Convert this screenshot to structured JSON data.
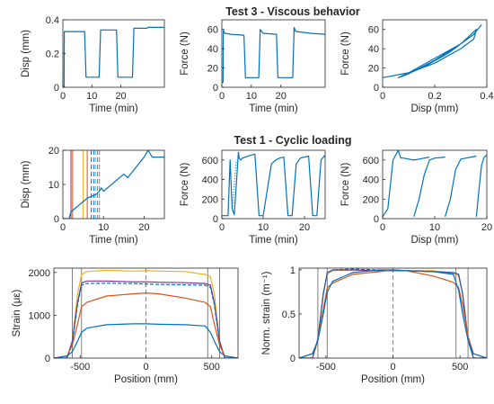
{
  "rows": [
    {
      "title": "Test 3 - Viscous behavior"
    },
    {
      "title": "Test 1 - Cyclic loading"
    }
  ],
  "colors": {
    "blue": "#0072BD",
    "red": "#D95319",
    "yellow": "#EDB120",
    "purple": "#7E2F8E",
    "green": "#77AC30",
    "cyan": "#4DBEEE",
    "axis": "#262626",
    "guide": "#808080"
  },
  "chart_data": [
    {
      "id": "t3_disp_time",
      "type": "line",
      "xlabel": "Time (min)",
      "ylabel": "Disp (mm)",
      "xlim": [
        0,
        35
      ],
      "ylim": [
        0,
        0.4
      ],
      "xticks": [
        0,
        10,
        20
      ],
      "yticks": [
        0,
        0.2,
        0.4
      ],
      "xticklabels": [
        "0",
        "10",
        "20"
      ],
      "yticklabels": [
        "0",
        "0.2",
        "0.4"
      ],
      "series": [
        {
          "color": "blue",
          "x": [
            0,
            0.4,
            0.5,
            7.5,
            8,
            12.5,
            13,
            18.5,
            19,
            24,
            24.5,
            29,
            29.5,
            35
          ],
          "y": [
            0,
            0,
            0.33,
            0.33,
            0.06,
            0.06,
            0.34,
            0.34,
            0.06,
            0.06,
            0.35,
            0.35,
            0.355,
            0.355
          ]
        }
      ]
    },
    {
      "id": "t3_force_time",
      "type": "line",
      "xlabel": "Time (min)",
      "ylabel": "Force (N)",
      "xlim": [
        0,
        35
      ],
      "ylim": [
        0,
        70
      ],
      "xticks": [
        0,
        10,
        20
      ],
      "yticks": [
        0,
        20,
        40,
        60
      ],
      "xticklabels": [
        "0",
        "10",
        "20"
      ],
      "yticklabels": [
        "0",
        "20",
        "40",
        "60"
      ],
      "series": [
        {
          "color": "blue",
          "x": [
            0,
            0.4,
            0.5,
            1,
            3,
            7.5,
            8,
            12.5,
            13,
            14,
            18.5,
            19,
            24,
            24.5,
            25,
            30,
            35
          ],
          "y": [
            5,
            5,
            59,
            56,
            55,
            54,
            10,
            10,
            60,
            56,
            55,
            10,
            10,
            62,
            58,
            56,
            55
          ]
        }
      ]
    },
    {
      "id": "t3_force_disp",
      "type": "line",
      "xlabel": "Disp (mm)",
      "ylabel": "Force (N)",
      "xlim": [
        0,
        0.4
      ],
      "ylim": [
        0,
        70
      ],
      "xticks": [
        0,
        0.2,
        0.4
      ],
      "yticks": [
        0,
        20,
        40,
        60
      ],
      "xticklabels": [
        "0",
        "0.2",
        "0.4"
      ],
      "yticklabels": [
        "0",
        "20",
        "40",
        "60"
      ],
      "series": [
        {
          "color": "blue",
          "x": [
            0,
            0.1,
            0.2,
            0.3,
            0.35,
            0.36,
            0.3,
            0.2,
            0.1,
            0.06,
            0.1,
            0.2,
            0.3,
            0.34,
            0.3,
            0.2,
            0.1,
            0.06,
            0.15,
            0.25,
            0.35,
            0.38
          ],
          "y": [
            10,
            15,
            25,
            40,
            50,
            60,
            45,
            28,
            14,
            10,
            15,
            30,
            45,
            55,
            45,
            30,
            15,
            10,
            20,
            35,
            55,
            65
          ]
        }
      ]
    },
    {
      "id": "t1_disp_time",
      "type": "line",
      "xlabel": "Time (min)",
      "ylabel": "Disp (mm)",
      "xlim": [
        0,
        25
      ],
      "ylim": [
        0,
        20
      ],
      "xticks": [
        0,
        10,
        20
      ],
      "yticks": [
        0,
        10,
        20
      ],
      "xticklabels": [
        "0",
        "10",
        "20"
      ],
      "yticklabels": [
        "0",
        "10",
        "20"
      ],
      "series": [
        {
          "color": "blue",
          "x": [
            0,
            1.5,
            2,
            3,
            4,
            5,
            6,
            7,
            8,
            9,
            9.5,
            10,
            15,
            16,
            20,
            21,
            22,
            24,
            25
          ],
          "y": [
            0,
            0,
            2,
            3,
            4,
            5,
            6,
            6.5,
            7,
            8,
            9,
            8,
            13,
            12,
            18,
            20,
            18,
            18,
            18
          ]
        }
      ],
      "vlines": [
        {
          "x": 2,
          "color": "purple",
          "dash": false
        },
        {
          "x": 2.4,
          "color": "red",
          "dash": false
        },
        {
          "x": 5,
          "color": "yellow",
          "dash": false
        },
        {
          "x": 6,
          "color": "red",
          "dash": false
        },
        {
          "x": 7,
          "color": "purple",
          "dash": true
        },
        {
          "x": 7.6,
          "color": "blue",
          "dash": true
        },
        {
          "x": 8,
          "color": "cyan",
          "dash": true
        },
        {
          "x": 8.5,
          "color": "guide",
          "dash": true
        },
        {
          "x": 9,
          "color": "guide",
          "dash": true
        }
      ]
    },
    {
      "id": "t1_force_time",
      "type": "line",
      "xlabel": "Time (min)",
      "ylabel": "Force (N)",
      "xlim": [
        0,
        25
      ],
      "ylim": [
        0,
        700
      ],
      "xticks": [
        0,
        10,
        20
      ],
      "yticks": [
        0,
        200,
        400,
        600
      ],
      "xticklabels": [
        "0",
        "10",
        "20"
      ],
      "yticklabels": [
        "0",
        "200",
        "400",
        "600"
      ],
      "series": [
        {
          "color": "blue",
          "x": [
            0,
            1.5,
            2,
            2.5,
            3,
            3.5,
            4,
            4.2,
            4.5,
            5,
            7,
            8,
            9,
            10,
            12,
            13,
            14,
            15,
            16,
            17,
            18,
            19,
            20,
            21,
            22,
            23,
            24,
            25
          ],
          "y": [
            30,
            30,
            600,
            100,
            40,
            350,
            680,
            620,
            600,
            620,
            650,
            660,
            30,
            30,
            560,
            600,
            620,
            630,
            30,
            30,
            560,
            620,
            630,
            640,
            30,
            30,
            600,
            650
          ]
        },
        {
          "color": "blue",
          "dotted": true,
          "x": [
            2.5,
            3.5
          ],
          "y": [
            100,
            600
          ]
        }
      ]
    },
    {
      "id": "t1_force_disp",
      "type": "line",
      "xlabel": "Disp (mm)",
      "ylabel": "Force (N)",
      "xlim": [
        0,
        20
      ],
      "ylim": [
        0,
        700
      ],
      "xticks": [
        0,
        10,
        20
      ],
      "yticks": [
        0,
        200,
        400,
        600
      ],
      "xticklabels": [
        "0",
        "10",
        "20"
      ],
      "yticklabels": [
        "0",
        "200",
        "400",
        "600"
      ],
      "series": [
        {
          "color": "blue",
          "x": [
            0,
            1,
            2,
            2.5,
            3,
            3.5,
            4,
            5,
            6,
            7,
            8,
            9
          ],
          "y": [
            20,
            100,
            600,
            650,
            700,
            620,
            620,
            610,
            600,
            610,
            620,
            630
          ]
        },
        {
          "color": "blue",
          "x": [
            6,
            7,
            8,
            9,
            10,
            12
          ],
          "y": [
            20,
            200,
            450,
            600,
            620,
            630
          ]
        },
        {
          "color": "blue",
          "x": [
            12,
            13,
            14,
            15,
            16,
            18
          ],
          "y": [
            20,
            200,
            500,
            610,
            620,
            640
          ]
        },
        {
          "color": "blue",
          "x": [
            18,
            18.5,
            19,
            19.5,
            20
          ],
          "y": [
            20,
            300,
            550,
            630,
            650
          ]
        }
      ]
    },
    {
      "id": "strain_position",
      "type": "line",
      "xlabel": "Position (mm)",
      "ylabel": "Strain (με)",
      "xlim": [
        -700,
        700
      ],
      "ylim": [
        0,
        2100
      ],
      "xticks": [
        -500,
        0,
        500
      ],
      "yticks": [
        0,
        1000,
        2000
      ],
      "xticklabels": [
        "-500",
        "0",
        "500"
      ],
      "yticklabels": [
        "0",
        "1000",
        "2000"
      ],
      "vlines": [
        {
          "x": -560,
          "color": "guide",
          "dash": false
        },
        {
          "x": -490,
          "color": "guide",
          "dash": false
        },
        {
          "x": 0,
          "color": "guide",
          "dash": true
        },
        {
          "x": 470,
          "color": "guide",
          "dash": false
        },
        {
          "x": 560,
          "color": "guide",
          "dash": false
        }
      ],
      "series": [
        {
          "color": "yellow",
          "x": [
            -700,
            -600,
            -560,
            -520,
            -490,
            -450,
            -300,
            -100,
            0,
            100,
            300,
            450,
            490,
            520,
            560,
            600,
            700
          ],
          "y": [
            0,
            0,
            400,
            1500,
            1950,
            2020,
            2050,
            2030,
            2040,
            2030,
            2020,
            1950,
            1900,
            1500,
            400,
            0,
            0
          ]
        },
        {
          "color": "purple",
          "x": [
            -700,
            -600,
            -560,
            -520,
            -490,
            -450,
            -300,
            -100,
            0,
            100,
            300,
            450,
            490,
            520,
            560,
            600,
            700
          ],
          "y": [
            0,
            0,
            400,
            1300,
            1750,
            1800,
            1800,
            1780,
            1780,
            1770,
            1760,
            1740,
            1700,
            1300,
            400,
            0,
            0
          ]
        },
        {
          "color": "blue",
          "dash": true,
          "x": [
            -700,
            -600,
            -560,
            -520,
            -490,
            -450,
            -300,
            -100,
            0,
            100,
            300,
            450,
            490,
            520,
            560,
            600,
            700
          ],
          "y": [
            0,
            0,
            350,
            1250,
            1700,
            1740,
            1750,
            1740,
            1730,
            1720,
            1710,
            1700,
            1650,
            1250,
            350,
            0,
            0
          ]
        },
        {
          "color": "red",
          "x": [
            -700,
            -600,
            -560,
            -520,
            -490,
            -450,
            -300,
            -100,
            0,
            100,
            300,
            450,
            490,
            520,
            560,
            600,
            700
          ],
          "y": [
            0,
            50,
            300,
            800,
            1200,
            1300,
            1450,
            1500,
            1520,
            1500,
            1400,
            1300,
            1200,
            800,
            300,
            50,
            0
          ]
        },
        {
          "color": "blue",
          "x": [
            -700,
            -600,
            -560,
            -520,
            -490,
            -450,
            -300,
            -100,
            0,
            100,
            300,
            450,
            490,
            520,
            560,
            600,
            700
          ],
          "y": [
            0,
            50,
            150,
            400,
            600,
            700,
            780,
            800,
            800,
            790,
            780,
            750,
            600,
            400,
            150,
            50,
            0
          ]
        }
      ]
    },
    {
      "id": "norm_strain_position",
      "type": "line",
      "xlabel": "Position (mm)",
      "ylabel": "Norm. strain (m⁻¹)",
      "xlim": [
        -700,
        700
      ],
      "ylim": [
        0,
        1.02
      ],
      "xticks": [
        -500,
        0,
        500
      ],
      "yticks": [
        0,
        0.5,
        1
      ],
      "xticklabels": [
        "-500",
        "0",
        "500"
      ],
      "yticklabels": [
        "0",
        "0.5",
        "1"
      ],
      "vlines": [
        {
          "x": -560,
          "color": "guide",
          "dash": false
        },
        {
          "x": -490,
          "color": "guide",
          "dash": false
        },
        {
          "x": 0,
          "color": "guide",
          "dash": true
        },
        {
          "x": 470,
          "color": "guide",
          "dash": false
        },
        {
          "x": 560,
          "color": "guide",
          "dash": false
        }
      ],
      "series": [
        {
          "color": "yellow",
          "x": [
            -700,
            -600,
            -560,
            -520,
            -490,
            -450,
            -300,
            -100,
            0,
            100,
            300,
            450,
            490,
            520,
            560,
            600,
            700
          ],
          "y": [
            0,
            0,
            0.2,
            0.75,
            0.95,
            0.99,
            1,
            0.99,
            1,
            0.99,
            0.99,
            0.96,
            0.93,
            0.73,
            0.2,
            0,
            0
          ]
        },
        {
          "color": "purple",
          "x": [
            -700,
            -600,
            -560,
            -520,
            -490,
            -450,
            -300,
            -100,
            0,
            100,
            300,
            450,
            490,
            520,
            560,
            600,
            700
          ],
          "y": [
            0,
            0,
            0.22,
            0.72,
            0.97,
            1,
            1,
            0.99,
            0.99,
            0.99,
            0.98,
            0.97,
            0.95,
            0.73,
            0.22,
            0,
            0
          ]
        },
        {
          "color": "blue",
          "dash": true,
          "x": [
            -700,
            -600,
            -560,
            -520,
            -490,
            -450,
            -300,
            -100,
            0,
            100,
            300,
            450,
            490,
            520,
            560,
            600,
            700
          ],
          "y": [
            0,
            0,
            0.2,
            0.72,
            0.97,
            1,
            1.01,
            1,
            0.99,
            0.99,
            0.98,
            0.97,
            0.95,
            0.72,
            0.2,
            0,
            0
          ]
        },
        {
          "color": "red",
          "x": [
            -700,
            -600,
            -560,
            -520,
            -490,
            -450,
            -300,
            -100,
            0,
            100,
            300,
            450,
            490,
            520,
            560,
            600,
            700
          ],
          "y": [
            0,
            0.05,
            0.2,
            0.55,
            0.8,
            0.85,
            0.95,
            0.98,
            1,
            0.99,
            0.93,
            0.86,
            0.8,
            0.6,
            0.25,
            0.05,
            0
          ]
        },
        {
          "color": "blue",
          "x": [
            -700,
            -600,
            -560,
            -520,
            -490,
            -450,
            -300,
            -100,
            0,
            100,
            300,
            450,
            490,
            520,
            560,
            600,
            700
          ],
          "y": [
            0,
            0.05,
            0.2,
            0.5,
            0.75,
            0.87,
            0.97,
            1,
            1,
            0.99,
            0.98,
            0.95,
            0.77,
            0.5,
            0.2,
            0.05,
            0
          ]
        }
      ]
    }
  ]
}
